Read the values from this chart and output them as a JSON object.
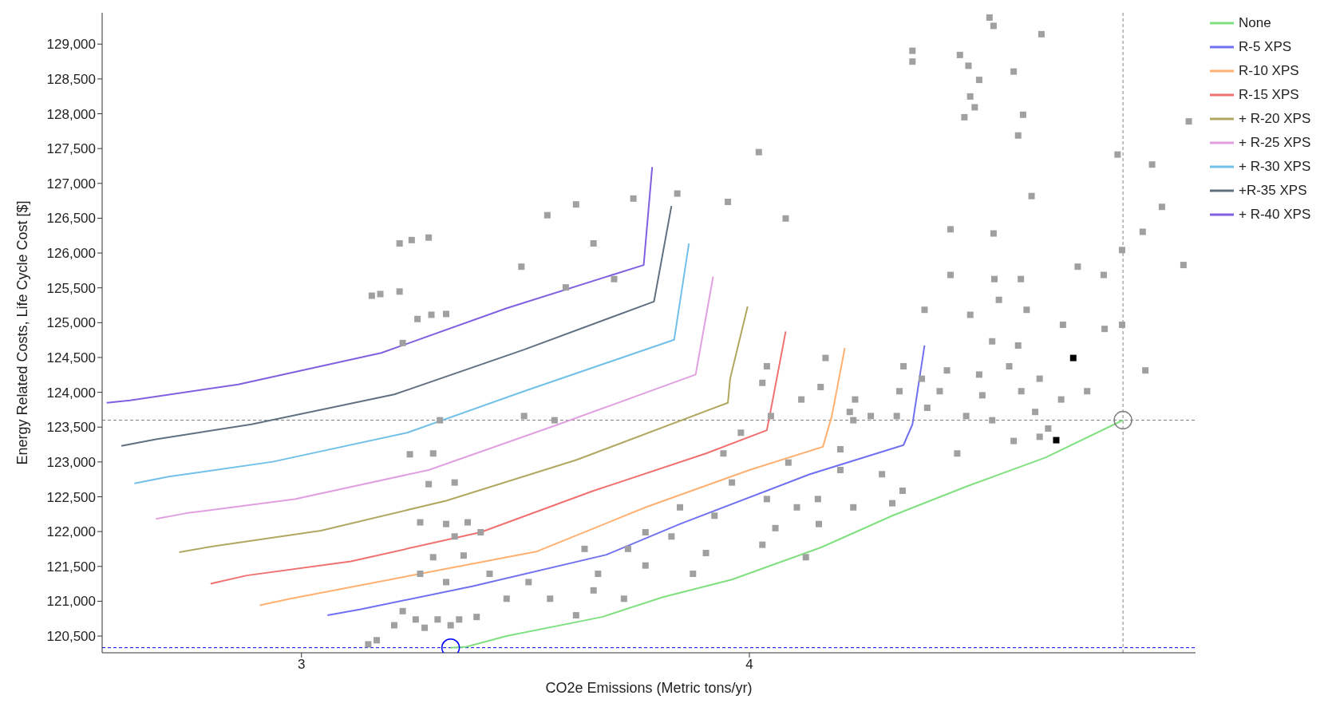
{
  "chart_data": {
    "type": "line",
    "xlabel": "CO2e Emissions (Metric tons/yr)",
    "ylabel": "Energy Related Costs, Life Cycle Cost [$]",
    "xlim": [
      2.555,
      4.996
    ],
    "xticks": [
      3,
      4
    ],
    "ylim": [
      120260,
      129450
    ],
    "yticks": [
      {
        "value": 120500,
        "label": "120,500"
      },
      {
        "value": 121000,
        "label": "121,000"
      },
      {
        "value": 121500,
        "label": "121,500"
      },
      {
        "value": 122000,
        "label": "122,000"
      },
      {
        "value": 122500,
        "label": "122,500"
      },
      {
        "value": 123000,
        "label": "123,000"
      },
      {
        "value": 123500,
        "label": "123,500"
      },
      {
        "value": 124000,
        "label": "124,000"
      },
      {
        "value": 124500,
        "label": "124,500"
      },
      {
        "value": 125000,
        "label": "125,000"
      },
      {
        "value": 125500,
        "label": "125,500"
      },
      {
        "value": 126000,
        "label": "126,000"
      },
      {
        "value": 126500,
        "label": "126,500"
      },
      {
        "value": 127000,
        "label": "127,000"
      },
      {
        "value": 127500,
        "label": "127,500"
      },
      {
        "value": 128000,
        "label": "128,000"
      },
      {
        "value": 128500,
        "label": "128,500"
      },
      {
        "value": 129000,
        "label": "129,000"
      }
    ],
    "legend": "top right",
    "marker": "none",
    "line_style": "solid",
    "ref_lines": [
      {
        "axis": "y",
        "value": 123600,
        "color": "#808080",
        "line_style": "dashed"
      },
      {
        "axis": "x",
        "value": 4.834,
        "color": "#808080",
        "line_style": "dashed"
      },
      {
        "axis": "y",
        "value": 120333,
        "color": "#0000ff",
        "line_style": "dashed"
      }
    ],
    "series": [
      {
        "type": "scatter",
        "color": "#a0a0a0",
        "marker": "square",
        "x": [
          4.536,
          4.545,
          4.364,
          4.364,
          4.47,
          4.489,
          4.513,
          4.652,
          4.59,
          4.493,
          4.503,
          4.48,
          4.611,
          4.6,
          4.981,
          4.822,
          4.899,
          4.63,
          4.921,
          4.449,
          4.545,
          4.878,
          4.832,
          4.969,
          4.449,
          4.547,
          4.606,
          4.733,
          4.791,
          4.391,
          4.493,
          4.557,
          4.619,
          4.7,
          4.793,
          4.832,
          4.542,
          4.6,
          4.441,
          4.513,
          4.58,
          4.648,
          4.884,
          4.425,
          4.52,
          4.607,
          4.696,
          4.754,
          4.484,
          4.542,
          4.638,
          4.667,
          4.397,
          4.329,
          4.271,
          4.464,
          4.59,
          4.648,
          4.296,
          4.342,
          4.319,
          4.203,
          4.203,
          4.116,
          4.159,
          4.039,
          4.029,
          4.17,
          4.021,
          4.081,
          3.952,
          3.839,
          3.741,
          3.613,
          3.549,
          3.652,
          3.491,
          3.698,
          3.59,
          3.284,
          3.219,
          3.246,
          3.157,
          3.176,
          3.219,
          3.259,
          3.29,
          3.323,
          3.226,
          3.309,
          3.242,
          3.294,
          3.497,
          3.565,
          3.284,
          3.342,
          3.265,
          3.323,
          3.371,
          3.342,
          3.4,
          3.294,
          3.362,
          3.265,
          3.323,
          3.42,
          3.226,
          3.255,
          3.304,
          3.352,
          3.391,
          3.207,
          3.275,
          3.333,
          3.168,
          3.149,
          3.458,
          3.507,
          3.555,
          3.613,
          3.652,
          3.662,
          3.632,
          3.72,
          3.768,
          3.826,
          3.874,
          3.903,
          3.922,
          3.845,
          3.961,
          4.039,
          4.058,
          4.029,
          4.106,
          4.155,
          4.126,
          4.153,
          4.232,
          3.768,
          3.729,
          3.942,
          3.981,
          4.048,
          4.087,
          4.224,
          4.232,
          4.344,
          4.335,
          4.236,
          4.385
        ],
        "values": [
          129381,
          129262,
          128904,
          128749,
          128844,
          128689,
          128486,
          129142,
          128606,
          128248,
          128093,
          127950,
          127986,
          127688,
          127890,
          127414,
          127271,
          126818,
          126663,
          126341,
          126281,
          126305,
          126043,
          125828,
          125685,
          125626,
          125626,
          125804,
          125685,
          125185,
          125113,
          125328,
          125185,
          124970,
          124910,
          124970,
          124732,
          124672,
          124314,
          124255,
          124374,
          124195,
          124314,
          124016,
          123957,
          124016,
          123897,
          124016,
          123659,
          123599,
          123718,
          123480,
          123778,
          123659,
          123659,
          123122,
          123301,
          123361,
          122824,
          122586,
          122407,
          123182,
          122884,
          123897,
          124076,
          124374,
          124136,
          124493,
          127449,
          126496,
          126734,
          126854,
          126782,
          126698,
          126543,
          126138,
          125804,
          125626,
          125506,
          126222,
          126138,
          126186,
          125387,
          125411,
          125447,
          125053,
          125113,
          125125,
          124708,
          123599,
          123110,
          123122,
          123659,
          123599,
          122681,
          122705,
          122133,
          122109,
          122133,
          121930,
          121990,
          121632,
          121656,
          121394,
          121275,
          121394,
          120858,
          120738,
          120738,
          120738,
          120774,
          120655,
          120619,
          120655,
          120440,
          120381,
          121036,
          121275,
          121036,
          120798,
          121156,
          121394,
          121752,
          121036,
          121513,
          121930,
          121394,
          121692,
          122228,
          122348,
          122705,
          122467,
          122050,
          121811,
          122348,
          122109,
          121632,
          122467,
          122348,
          121990,
          121752,
          123122,
          123420,
          123659,
          122991,
          123718,
          123599,
          124374,
          124016,
          123897,
          124195
        ]
      },
      {
        "type": "scatter",
        "color": "#000000",
        "marker": "square",
        "x": [
          4.685,
          4.723
        ],
        "values": [
          123313,
          124493
        ]
      },
      {
        "name": "None",
        "color": "#80e080",
        "x": [
          3.333,
          3.368,
          3.458,
          3.671,
          3.807,
          3.961,
          4.161,
          4.319,
          4.484,
          4.661,
          4.834
        ],
        "values": [
          120333,
          120345,
          120500,
          120774,
          121060,
          121311,
          121775,
          122228,
          122646,
          123063,
          123600
        ]
      },
      {
        "name": "R-5 XPS",
        "color": "#7070f0",
        "x": [
          3.058,
          3.13,
          3.381,
          3.681,
          3.845,
          4.135,
          4.344,
          4.364,
          4.391
        ],
        "values": [
          120798,
          120881,
          121215,
          121668,
          122109,
          122824,
          123242,
          123540,
          124672
        ]
      },
      {
        "name": "R-10 XPS",
        "color": "#ffb070",
        "x": [
          2.907,
          2.975,
          3.265,
          3.526,
          3.768,
          4.0,
          4.164,
          4.184,
          4.213
        ],
        "values": [
          120941,
          121036,
          121394,
          121716,
          122348,
          122884,
          123218,
          123659,
          124636
        ]
      },
      {
        "name": "R-15 XPS",
        "color": "#f07070",
        "x": [
          2.797,
          2.878,
          3.11,
          3.4,
          3.652,
          3.903,
          4.039,
          4.054,
          4.081
        ],
        "values": [
          121251,
          121370,
          121573,
          121990,
          122586,
          123122,
          123456,
          123957,
          124874
        ]
      },
      {
        "name": "+ R-20 XPS",
        "color": "#b0a860",
        "x": [
          2.727,
          2.801,
          3.043,
          3.323,
          3.613,
          3.952,
          3.957,
          3.996
        ],
        "values": [
          121704,
          121787,
          122014,
          122443,
          123027,
          123850,
          124195,
          125232
        ]
      },
      {
        "name": "+ R-25 XPS",
        "color": "#e0a0e0",
        "x": [
          2.675,
          2.743,
          2.985,
          3.284,
          3.574,
          3.88,
          3.919
        ],
        "values": [
          122181,
          122264,
          122467,
          122884,
          123540,
          124255,
          125661
        ]
      },
      {
        "name": "+ R-30 XPS",
        "color": "#70c0e8",
        "x": [
          2.627,
          2.704,
          2.936,
          3.236,
          3.497,
          3.832,
          3.865
        ],
        "values": [
          122693,
          122789,
          123003,
          123420,
          124016,
          124755,
          126138
        ]
      },
      {
        "name": "+R-35 XPS",
        "color": "#607080",
        "x": [
          2.598,
          2.675,
          2.888,
          3.207,
          3.497,
          3.787,
          3.826
        ],
        "values": [
          123230,
          123325,
          123540,
          123969,
          124613,
          125304,
          126675
        ]
      },
      {
        "name": "+ R-40 XPS",
        "color": "#8060e0",
        "x": [
          2.565,
          2.617,
          2.859,
          3.178,
          3.458,
          3.764,
          3.783
        ],
        "values": [
          123850,
          123885,
          124112,
          124565,
          125208,
          125828,
          127235
        ]
      },
      {
        "type": "scatter",
        "color": "#808080",
        "marker": "circle",
        "x": [
          4.834
        ],
        "values": [
          123600
        ]
      },
      {
        "type": "scatter",
        "color": "#0000ff",
        "marker": "circle",
        "x": [
          3.333
        ],
        "values": [
          120333
        ]
      }
    ]
  }
}
